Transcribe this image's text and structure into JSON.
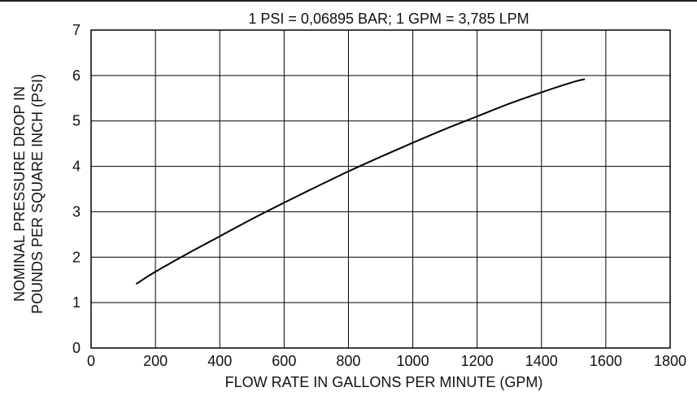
{
  "chart_data": {
    "type": "line",
    "title": "1 PSI = 0,06895 BAR; 1 GPM = 3,785 LPM",
    "xlabel": "FLOW RATE IN GALLONS PER MINUTE (GPM)",
    "ylabel_lines": [
      "NOMINAL PRESSURE DROP IN",
      "POUNDS PER SQUARE INCH (PSI)"
    ],
    "xlim": [
      0,
      1800
    ],
    "ylim": [
      0,
      7
    ],
    "x_ticks": [
      0,
      200,
      400,
      600,
      800,
      1000,
      1200,
      1400,
      1600,
      1800
    ],
    "y_ticks": [
      0,
      1,
      2,
      3,
      4,
      5,
      6,
      7
    ],
    "grid": true,
    "series": [
      {
        "x": [
          140,
          200,
          300,
          400,
          500,
          600,
          700,
          800,
          900,
          1000,
          1100,
          1200,
          1300,
          1400,
          1500,
          1535
        ],
        "y": [
          1.41,
          1.68,
          2.08,
          2.46,
          2.84,
          3.2,
          3.55,
          3.89,
          4.21,
          4.52,
          4.82,
          5.1,
          5.38,
          5.63,
          5.86,
          5.92
        ]
      }
    ],
    "colors": {
      "line": "#000000",
      "grid": "#000000",
      "text": "#111111"
    }
  }
}
